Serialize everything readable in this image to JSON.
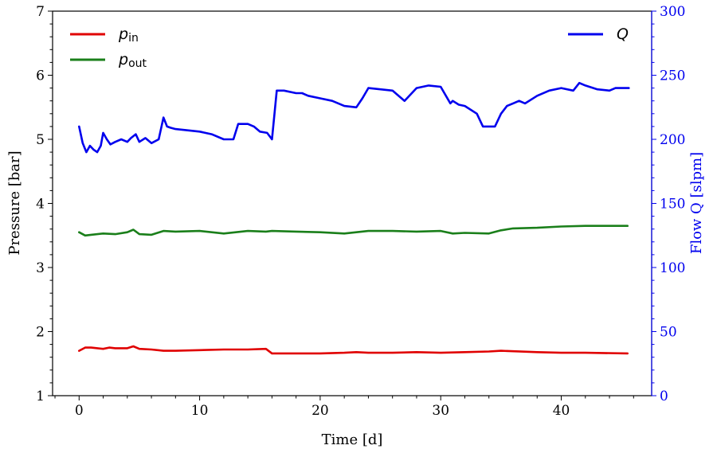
{
  "chart_data": {
    "type": "line",
    "xlabel": "Time [d]",
    "ylabel_left": "Pressure [bar]",
    "ylabel_right": "Flow Q [slpm]",
    "xlim": [
      -2.2,
      47.5
    ],
    "ylim_left": [
      1,
      7
    ],
    "ylim_right": [
      0,
      300
    ],
    "x_ticks": [
      0,
      10,
      20,
      30,
      40
    ],
    "y_left_ticks": [
      1,
      2,
      3,
      4,
      5,
      6,
      7
    ],
    "y_right_ticks": [
      0,
      50,
      100,
      150,
      200,
      250,
      300
    ],
    "grid": false,
    "colors": {
      "p_in": "#e00000",
      "p_out": "#1a7f1a",
      "Q": "#0000ee",
      "right_axis": "#0000ee"
    },
    "legend_left": [
      {
        "series": "p_in",
        "base": "p",
        "sub": "in"
      },
      {
        "series": "p_out",
        "base": "p",
        "sub": "out"
      }
    ],
    "legend_right": [
      {
        "series": "Q",
        "label": "Q"
      }
    ],
    "series": [
      {
        "name": "p_in",
        "axis": "left",
        "x": [
          0,
          0.5,
          1,
          2,
          2.5,
          3,
          4,
          4.5,
          5,
          6,
          7,
          8,
          10,
          12,
          14,
          15.5,
          16,
          17,
          20,
          22,
          23,
          24,
          26,
          28,
          30,
          32,
          34,
          35,
          38,
          40,
          42,
          45.5
        ],
        "y": [
          1.7,
          1.75,
          1.75,
          1.73,
          1.75,
          1.74,
          1.74,
          1.77,
          1.73,
          1.72,
          1.7,
          1.7,
          1.71,
          1.72,
          1.72,
          1.73,
          1.66,
          1.66,
          1.66,
          1.67,
          1.68,
          1.67,
          1.67,
          1.68,
          1.67,
          1.68,
          1.69,
          1.7,
          1.68,
          1.67,
          1.67,
          1.66
        ]
      },
      {
        "name": "p_out",
        "axis": "left",
        "x": [
          0,
          0.5,
          1,
          2,
          3,
          4,
          4.5,
          5,
          6,
          7,
          8,
          10,
          12,
          14,
          15.5,
          16,
          18,
          20,
          22,
          24,
          26,
          28,
          30,
          31,
          32,
          34,
          35,
          36,
          38,
          40,
          42,
          45.5
        ],
        "y": [
          3.55,
          3.5,
          3.51,
          3.53,
          3.52,
          3.55,
          3.59,
          3.52,
          3.51,
          3.57,
          3.56,
          3.57,
          3.53,
          3.57,
          3.56,
          3.57,
          3.56,
          3.55,
          3.53,
          3.57,
          3.57,
          3.56,
          3.57,
          3.53,
          3.54,
          3.53,
          3.58,
          3.61,
          3.62,
          3.64,
          3.65,
          3.65
        ]
      },
      {
        "name": "Q",
        "axis": "right",
        "x": [
          0,
          0.3,
          0.6,
          0.9,
          1.2,
          1.5,
          1.8,
          2.0,
          2.3,
          2.6,
          3.0,
          3.5,
          4.0,
          4.3,
          4.7,
          5.0,
          5.5,
          6.0,
          6.6,
          7.0,
          7.3,
          7.6,
          8.0,
          9.0,
          10.0,
          11.0,
          12.0,
          12.8,
          13.2,
          14.0,
          14.5,
          15.0,
          15.6,
          16.0,
          16.4,
          17.0,
          18.0,
          18.5,
          19.0,
          20.0,
          21.0,
          22.0,
          23.0,
          23.5,
          24.0,
          25.0,
          26.0,
          27.0,
          28.0,
          29.0,
          30.0,
          30.8,
          31.0,
          31.5,
          32.0,
          33.0,
          33.5,
          34.0,
          34.5,
          35.0,
          35.5,
          36.0,
          36.5,
          37.0,
          38.0,
          39.0,
          40.0,
          41.0,
          41.5,
          42.0,
          43.0,
          44.0,
          44.5,
          45.0,
          45.6
        ],
        "y": [
          210,
          197,
          190,
          195,
          192,
          190,
          195,
          205,
          200,
          196,
          198,
          200,
          198,
          201,
          204,
          198,
          201,
          197,
          200,
          217,
          210,
          209,
          208,
          207,
          206,
          204,
          200,
          200,
          212,
          212,
          210,
          206,
          205,
          200,
          238,
          238,
          236,
          236,
          234,
          232,
          230,
          226,
          225,
          232,
          240,
          239,
          238,
          230,
          240,
          242,
          241,
          228,
          230,
          227,
          226,
          220,
          210,
          210,
          210,
          220,
          226,
          228,
          230,
          228,
          234,
          238,
          240,
          238,
          244,
          242,
          239,
          238,
          240,
          240,
          240
        ]
      }
    ]
  }
}
